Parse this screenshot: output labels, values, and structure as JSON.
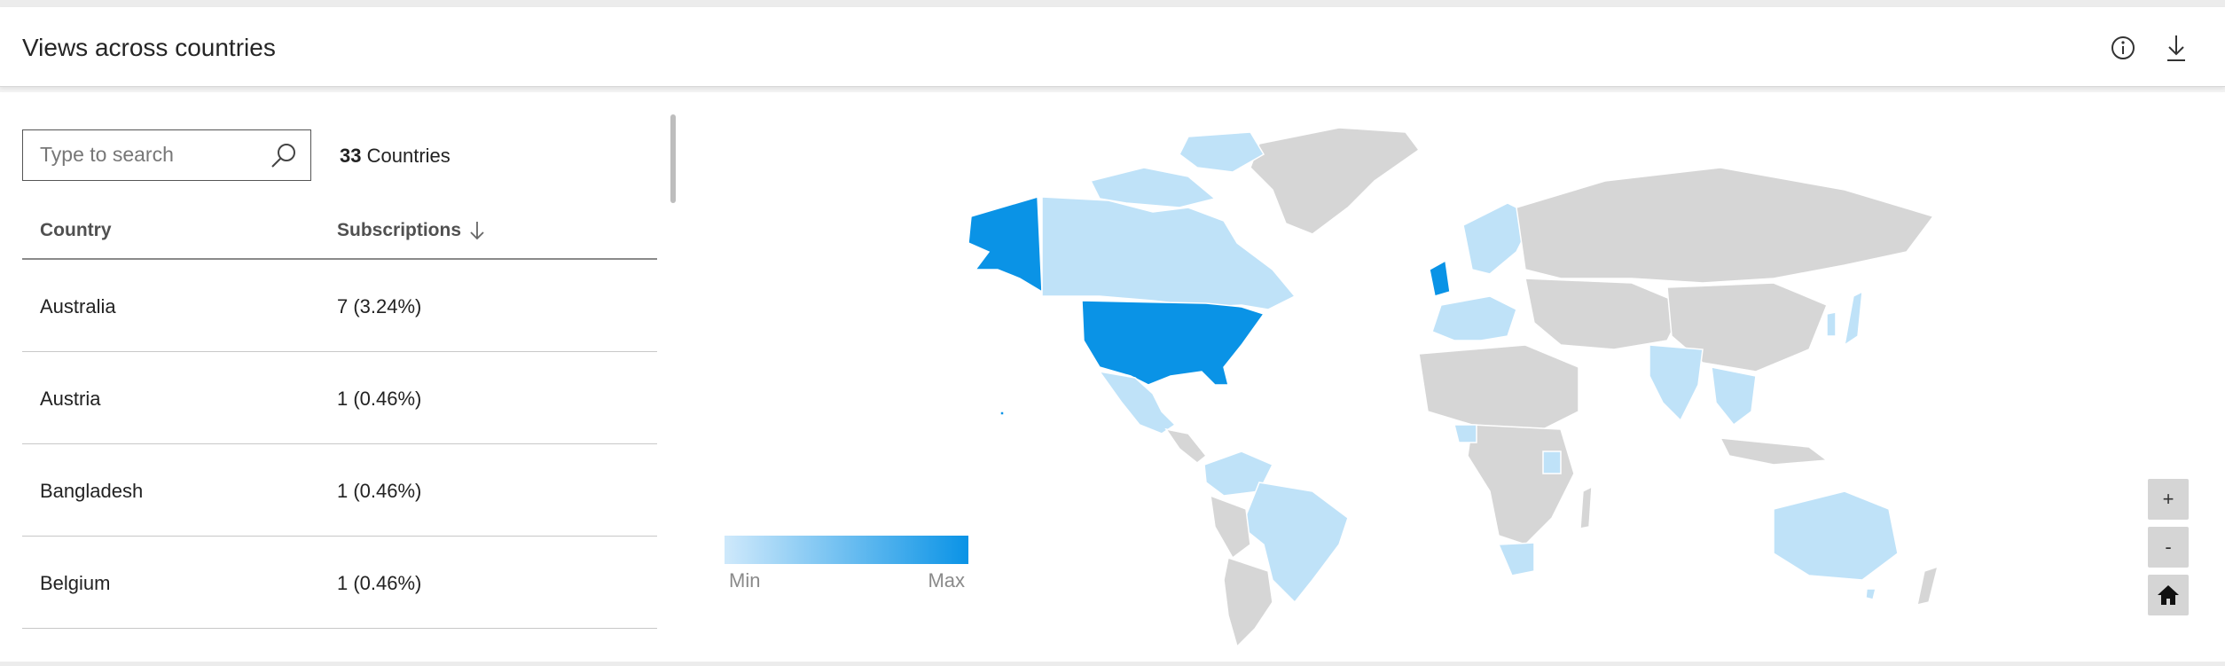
{
  "panel": {
    "title": "Views across countries"
  },
  "icons": {
    "info": "info-icon",
    "download": "download-icon",
    "search": "search-icon",
    "sort": "arrow-down-icon",
    "home": "home-icon"
  },
  "search": {
    "placeholder": "Type to search",
    "value": ""
  },
  "summary": {
    "count": "33",
    "label": "Countries"
  },
  "table": {
    "columns": [
      "Country",
      "Subscriptions"
    ],
    "rows": [
      {
        "country": "Australia",
        "subscriptions": "7 (3.24%)"
      },
      {
        "country": "Austria",
        "subscriptions": "1 (0.46%)"
      },
      {
        "country": "Bangladesh",
        "subscriptions": "1 (0.46%)"
      },
      {
        "country": "Belgium",
        "subscriptions": "1 (0.46%)"
      }
    ]
  },
  "legend": {
    "min": "Min",
    "max": "Max",
    "color_min": "#cfe9fb",
    "color_max": "#0a93e6"
  },
  "map_controls": {
    "zoom_in": "+",
    "zoom_out": "-"
  },
  "colors": {
    "highest": "#0a93e6",
    "light": "#bfe2f8",
    "no_data": "#d6d6d6"
  }
}
